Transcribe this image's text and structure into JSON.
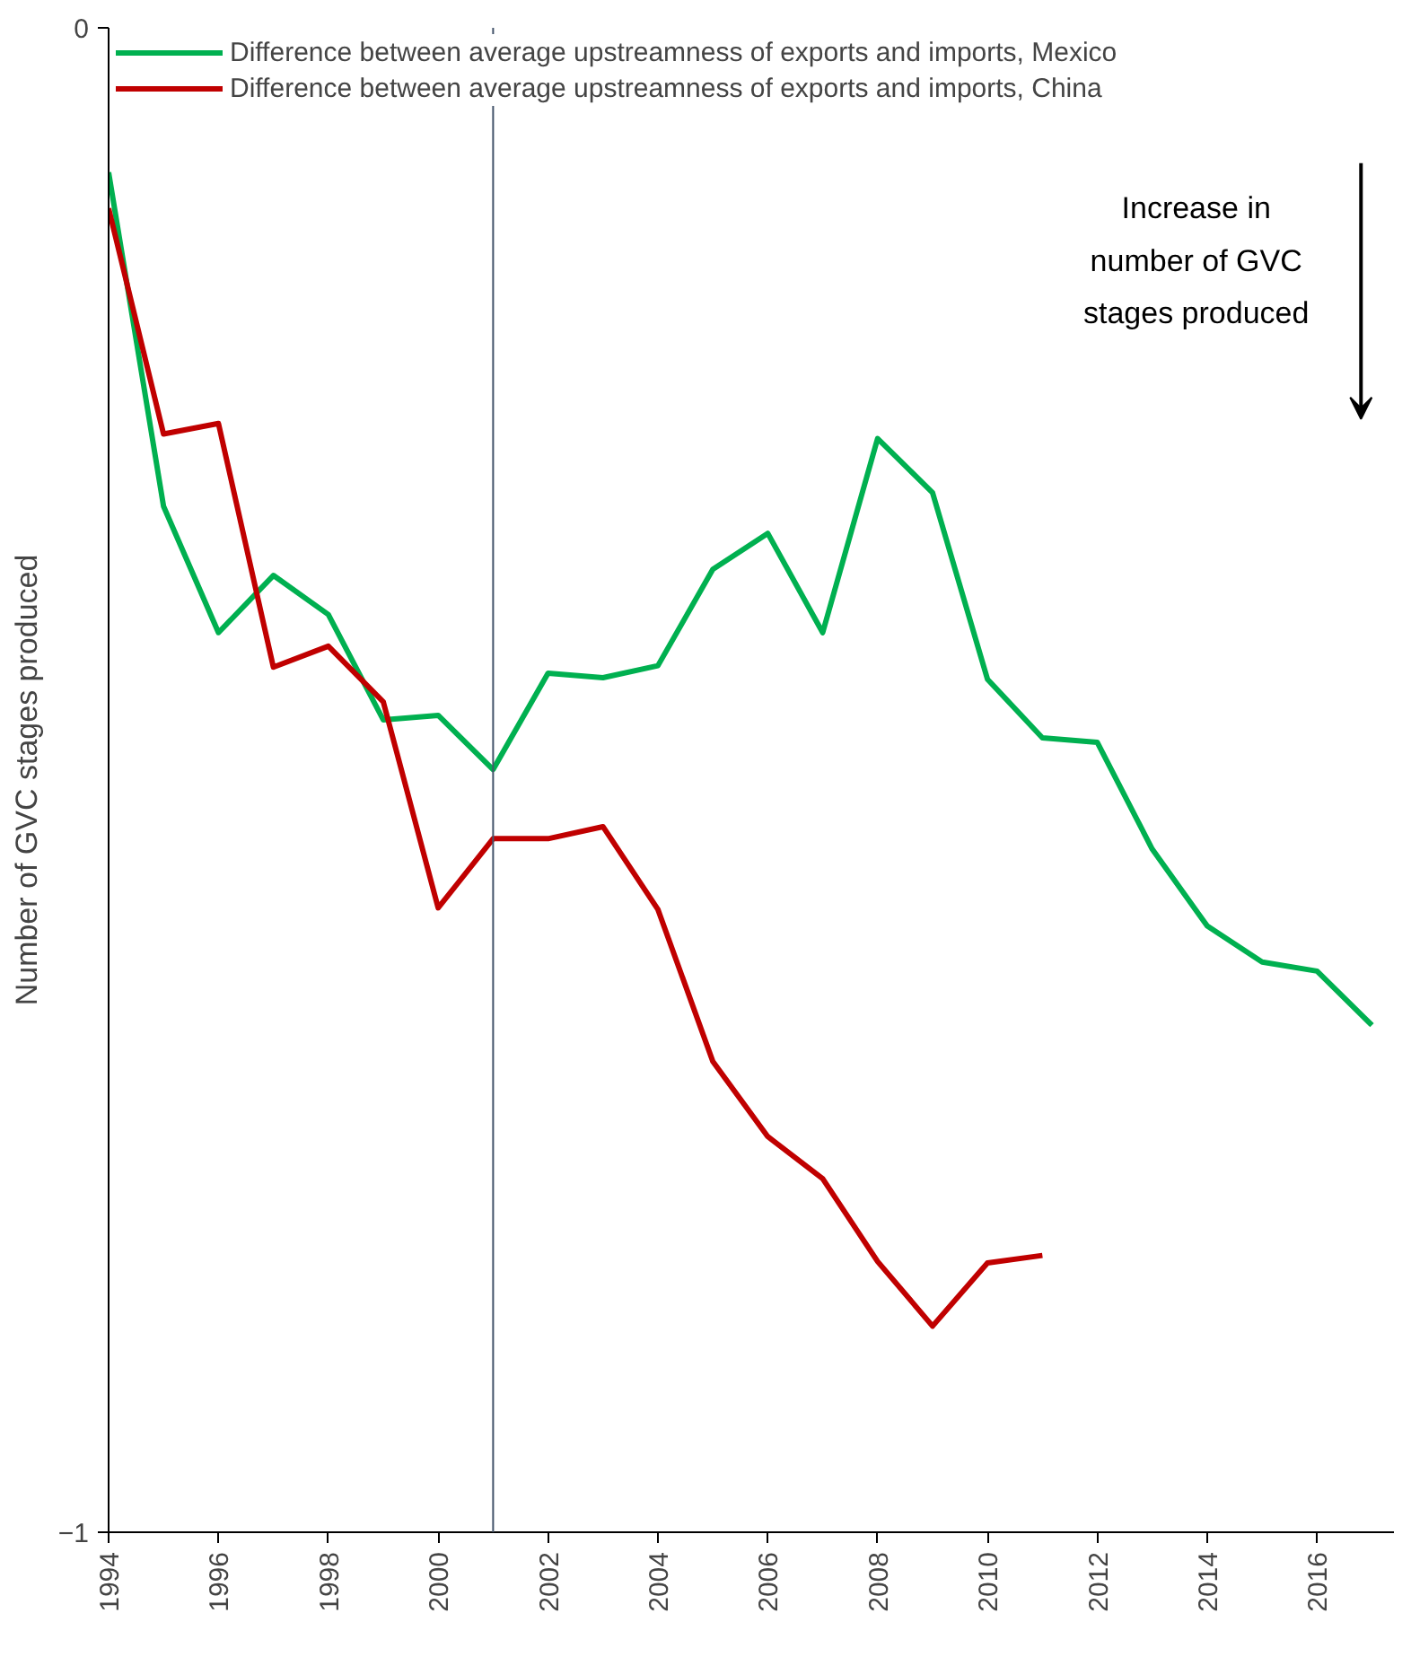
{
  "chart_data": {
    "type": "line",
    "ylabel": "Number of GVC stages produced",
    "x": [
      1994,
      1995,
      1996,
      1997,
      1998,
      1999,
      2000,
      2001,
      2002,
      2003,
      2004,
      2005,
      2006,
      2007,
      2008,
      2009,
      2010,
      2011,
      2012,
      2013,
      2014,
      2015,
      2016,
      2017
    ],
    "series": [
      {
        "name": "Difference between average upstreamness of exports and imports, Mexico",
        "color": "#00b050",
        "values": [
          -0.096,
          -0.318,
          -0.402,
          -0.364,
          -0.39,
          -0.46,
          -0.457,
          -0.493,
          -0.429,
          -0.432,
          -0.424,
          -0.36,
          -0.336,
          -0.402,
          -0.273,
          -0.309,
          -0.433,
          -0.472,
          -0.475,
          -0.546,
          -0.597,
          -0.621,
          -0.627,
          -0.663
        ]
      },
      {
        "name": "Difference between average upstreamness of exports and imports, China",
        "color": "#c00000",
        "values": [
          -0.12,
          -0.27,
          -0.263,
          -0.425,
          -0.411,
          -0.448,
          -0.585,
          -0.539,
          -0.539,
          -0.531,
          -0.586,
          -0.687,
          -0.737,
          -0.765,
          -0.82,
          -0.863,
          -0.821,
          -0.816,
          null,
          null,
          null,
          null,
          null,
          null
        ]
      }
    ],
    "xlim": [
      1994,
      2017.4
    ],
    "xticks": [
      1994,
      1996,
      1998,
      2000,
      2002,
      2004,
      2006,
      2008,
      2010,
      2012,
      2014,
      2016
    ],
    "ylim": [
      -1,
      0
    ],
    "yticks": [
      0,
      -1
    ],
    "ref_lines": [
      {
        "axis": "x",
        "value": 2001,
        "color": "#44546a"
      }
    ],
    "annotations": [
      "Increase in number of GVC stages produced"
    ],
    "legend": "top left",
    "grid": false,
    "marker": "none",
    "line_style": "solid"
  }
}
